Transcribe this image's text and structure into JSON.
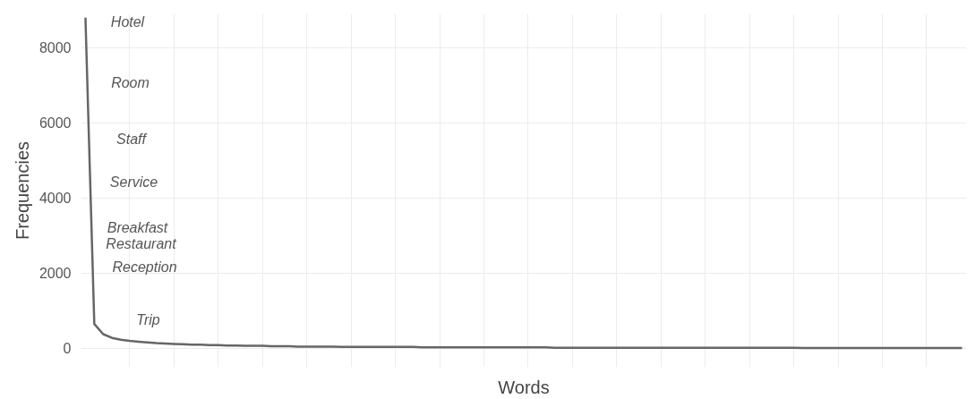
{
  "chart_data": {
    "type": "line",
    "xlabel": "Words",
    "ylabel": "Frequencies",
    "categories": [
      null,
      null,
      null,
      null,
      null,
      null,
      null,
      null,
      null,
      null,
      null,
      null,
      null,
      null,
      null,
      null,
      null,
      null,
      null,
      null,
      null,
      null,
      null,
      null,
      null,
      null,
      null,
      null,
      null,
      null,
      null,
      null,
      null,
      null,
      null,
      null,
      null,
      null,
      null,
      null,
      null,
      null,
      null,
      null,
      null,
      null,
      null,
      null,
      null,
      null,
      null,
      null,
      null,
      null,
      null,
      null,
      null,
      null,
      null,
      null,
      null,
      null,
      null,
      null,
      null,
      null,
      null,
      null,
      null,
      null,
      null,
      null,
      null,
      null,
      null,
      null,
      null,
      null,
      null,
      null,
      null,
      null,
      null,
      null,
      null,
      null,
      null,
      null,
      null,
      null,
      null,
      null,
      null,
      null,
      null,
      null,
      null,
      null,
      null,
      null
    ],
    "series": [
      {
        "color": "#666666",
        "values": [
          8800,
          650,
          380,
          280,
          230,
          200,
          180,
          160,
          140,
          130,
          120,
          110,
          100,
          100,
          90,
          90,
          80,
          80,
          70,
          70,
          70,
          60,
          60,
          60,
          50,
          50,
          50,
          50,
          50,
          40,
          40,
          40,
          40,
          40,
          40,
          40,
          40,
          40,
          30,
          30,
          30,
          30,
          30,
          30,
          30,
          30,
          30,
          30,
          30,
          30,
          30,
          30,
          30,
          20,
          20,
          20,
          20,
          20,
          20,
          20,
          20,
          20,
          20,
          20,
          20,
          20,
          20,
          20,
          20,
          20,
          20,
          20,
          20,
          20,
          20,
          20,
          20,
          20,
          20,
          20,
          20,
          10,
          10,
          10,
          10,
          10,
          10,
          10,
          10,
          10,
          10,
          10,
          10,
          10,
          10,
          10,
          10,
          10,
          10,
          10
        ]
      }
    ],
    "annotations": [
      "Hotel",
      "Room",
      "Staff",
      "Service",
      "Breakfast",
      "Restaurant",
      "Reception",
      "Trip"
    ],
    "ylim": [
      -500,
      8900
    ],
    "yticks": [
      0,
      2000,
      4000,
      6000,
      8000
    ],
    "grid": true,
    "marker": "none",
    "line_style": "solid"
  }
}
